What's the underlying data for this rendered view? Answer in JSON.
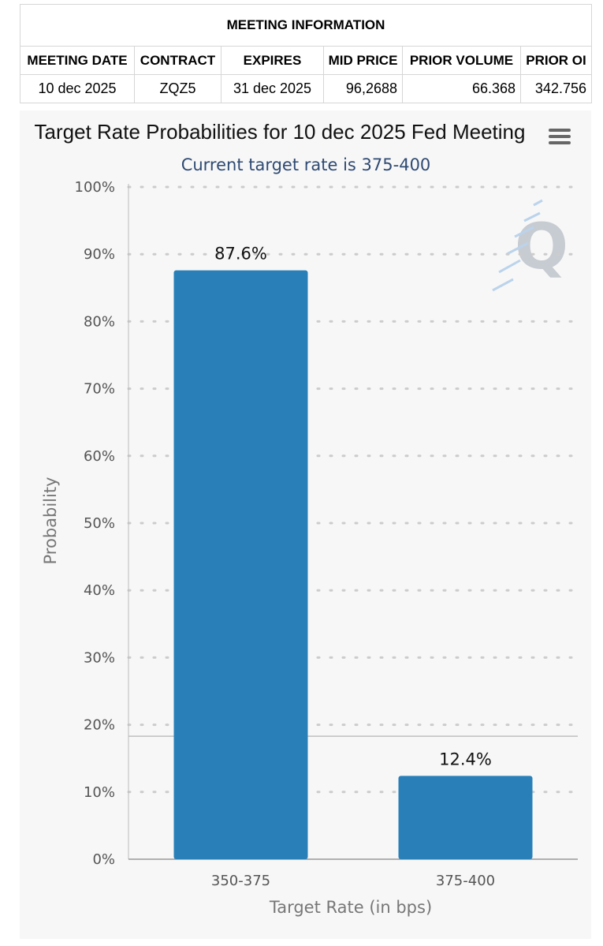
{
  "meeting_info": {
    "title": "MEETING INFORMATION",
    "headers": [
      "MEETING DATE",
      "CONTRACT",
      "EXPIRES",
      "MID PRICE",
      "PRIOR VOLUME",
      "PRIOR OI"
    ],
    "values": [
      "10 dec 2025",
      "ZQZ5",
      "31 dec 2025",
      "96,2688",
      "66.368",
      "342.756"
    ]
  },
  "menu_icon": "hamburger-menu-icon",
  "watermark_icon": "q-logo-icon",
  "colors": {
    "bar": "#2980b9",
    "grid": "#cccccc",
    "reference_line": "#bfbfbf",
    "panel_bg": "#f7f7f7",
    "subtitle": "#2f4a73"
  },
  "chart_data": {
    "type": "bar",
    "title": "Target Rate Probabilities for 10 dec 2025 Fed Meeting",
    "subtitle": "Current target rate is 375-400",
    "xlabel": "Target Rate (in bps)",
    "ylabel": "Probability",
    "categories": [
      "350-375",
      "375-400"
    ],
    "values": [
      87.6,
      12.4
    ],
    "data_labels": [
      "87.6%",
      "12.4%"
    ],
    "ylim": [
      0,
      100
    ],
    "yticks": [
      0,
      10,
      20,
      30,
      40,
      50,
      60,
      70,
      80,
      90,
      100
    ],
    "ytick_labels": [
      "0%",
      "10%",
      "20%",
      "30%",
      "40%",
      "50%",
      "60%",
      "70%",
      "80%",
      "90%",
      "100%"
    ],
    "reference_line_value": 18.3,
    "grid": true,
    "legend": "none"
  }
}
